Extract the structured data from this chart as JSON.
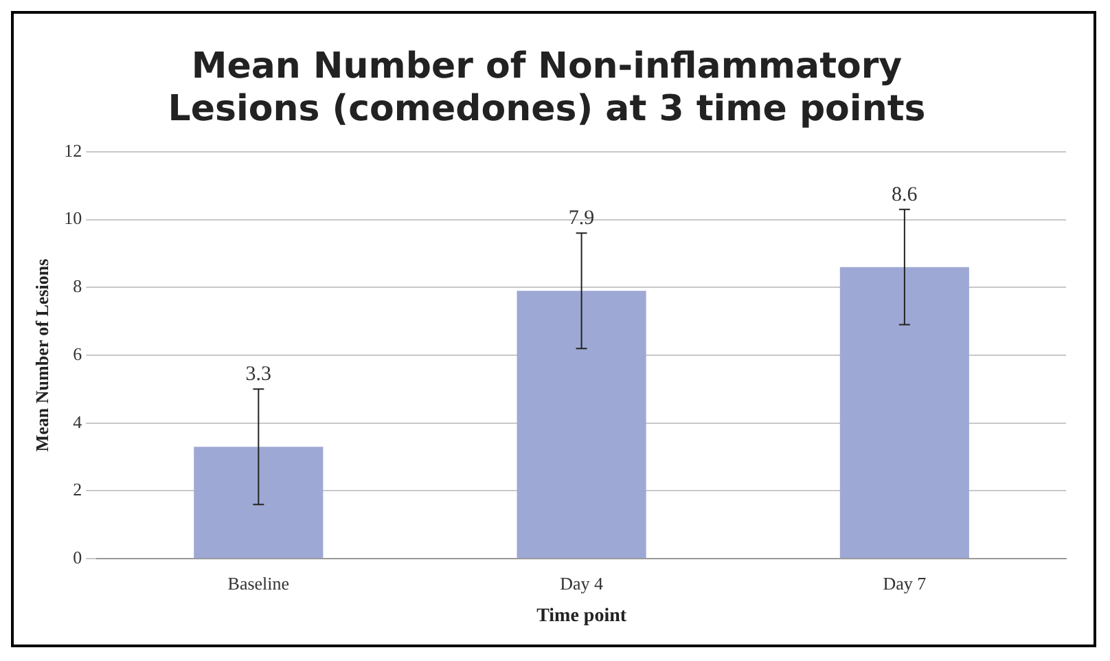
{
  "chart_data": {
    "type": "bar",
    "title": "Mean Number of Non-inflammatory Lesions (comedones) at 3 time points",
    "xlabel": "Time point",
    "ylabel": "Mean Number of Lesions",
    "categories": [
      "Baseline",
      "Day 4",
      "Day 7"
    ],
    "values": [
      3.3,
      7.9,
      8.6
    ],
    "color": "#9ea8d4",
    "errors": [
      1.7,
      1.7,
      1.7
    ],
    "data_labels": true,
    "ylim": [
      0,
      12
    ],
    "yticks": [
      0,
      2,
      4,
      6,
      8,
      10,
      12
    ],
    "grid": "y"
  }
}
